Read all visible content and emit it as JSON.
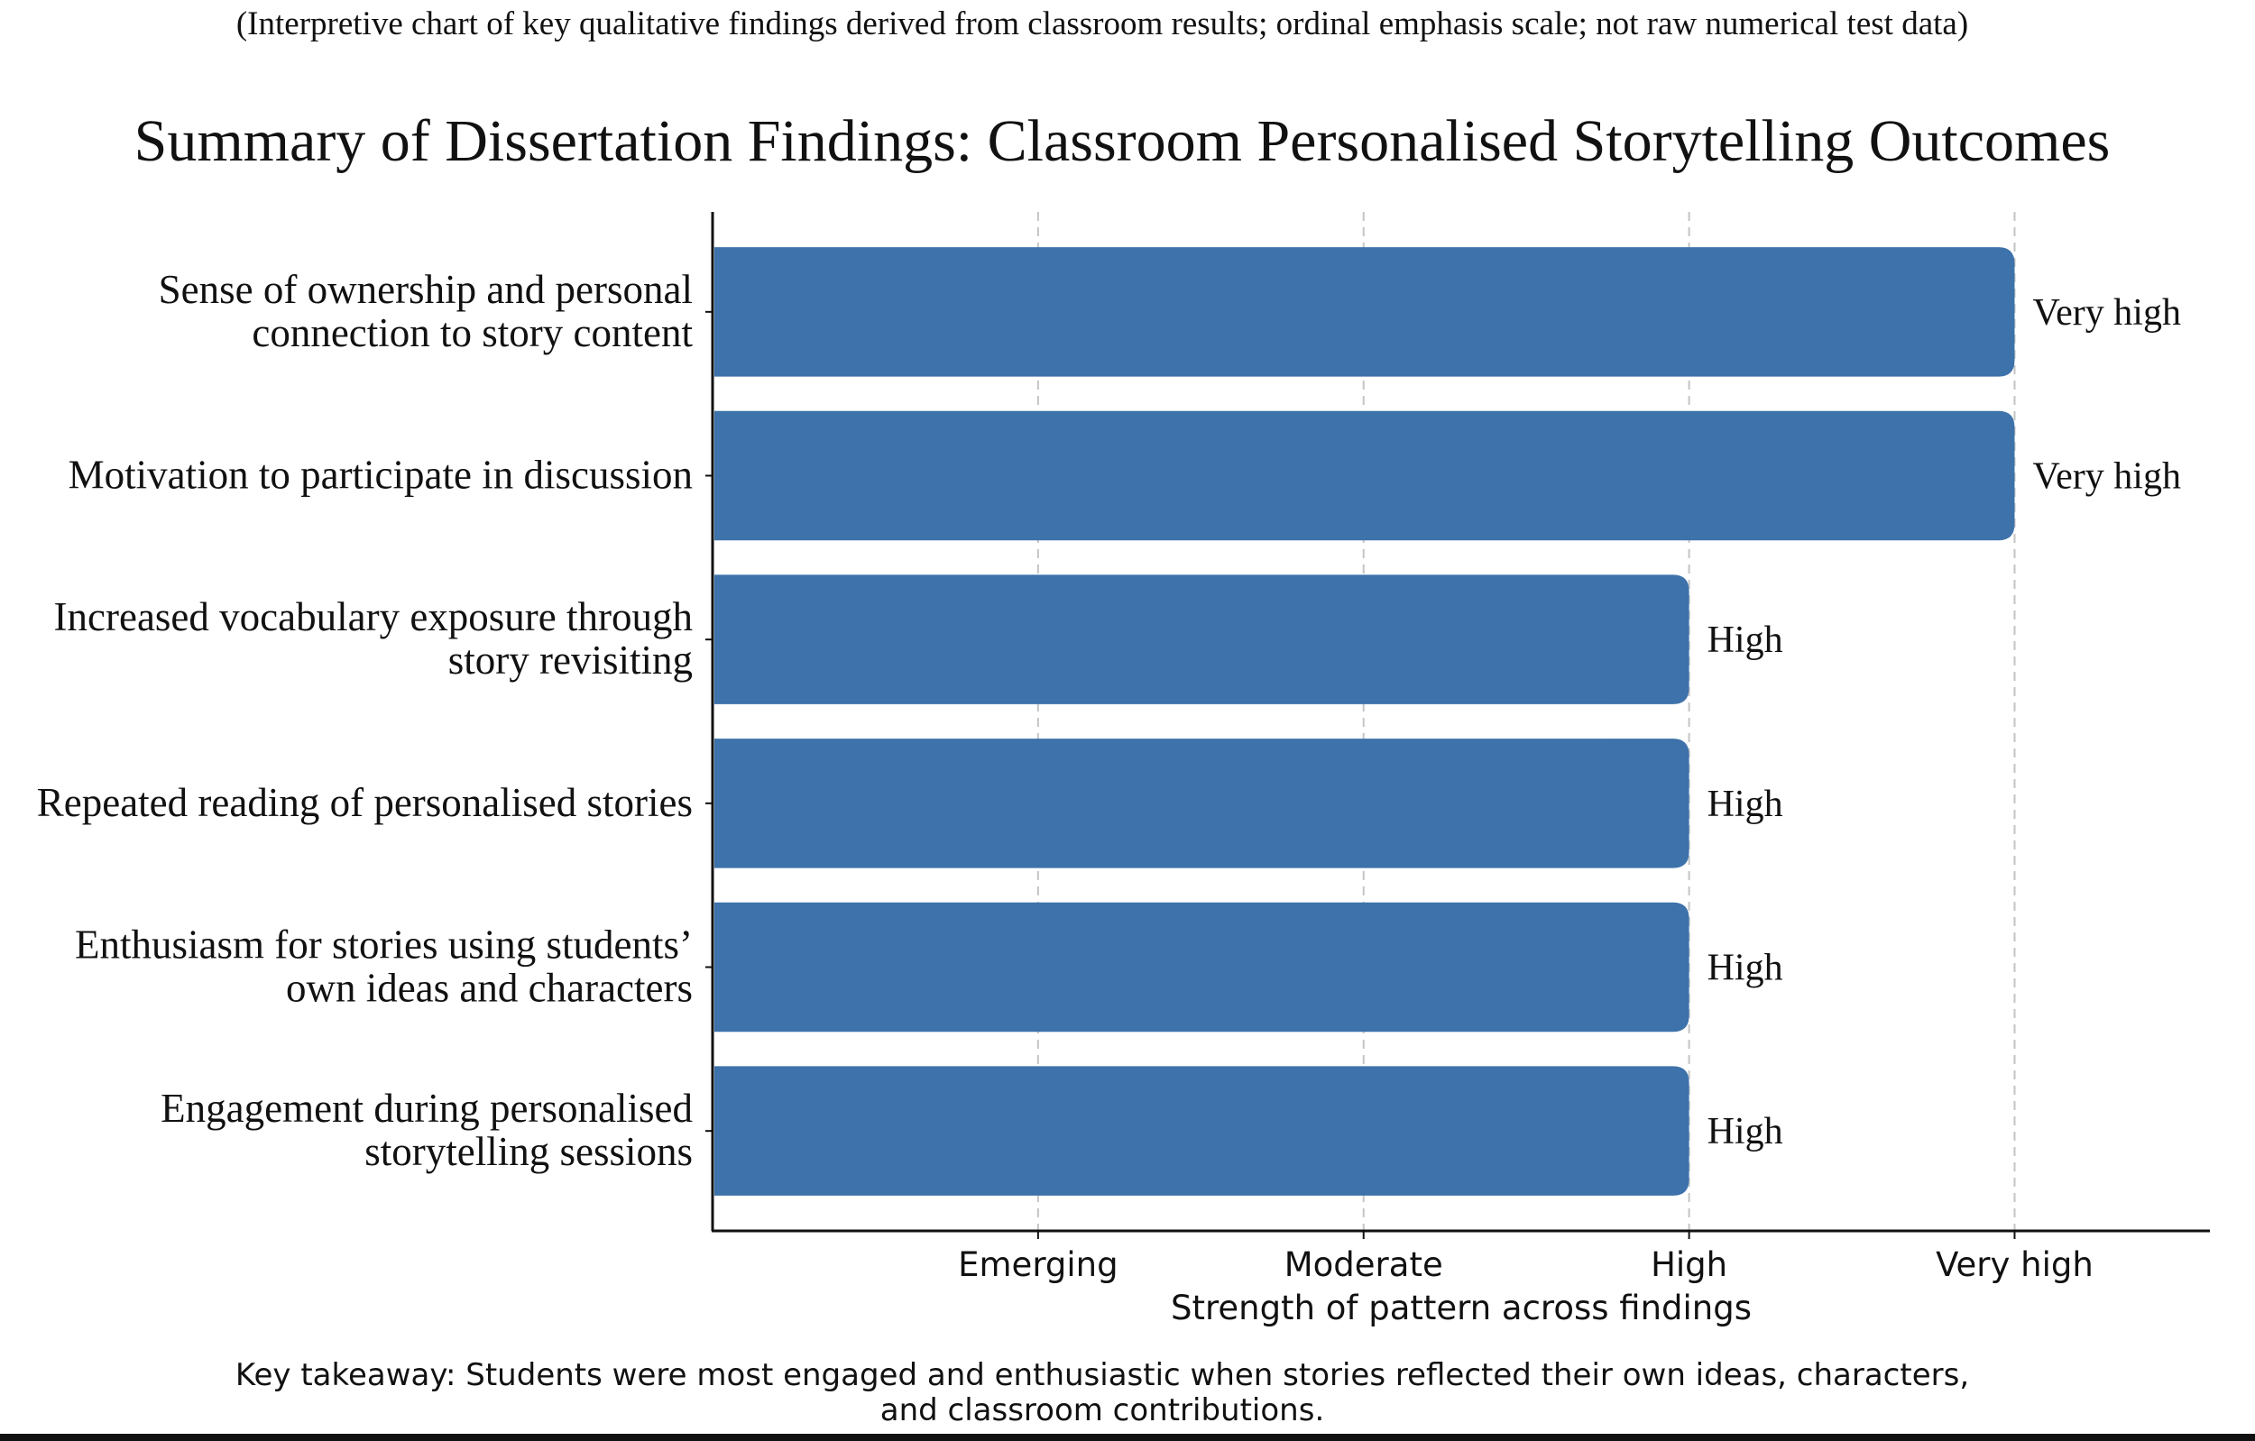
{
  "subtitle": "(Interpretive chart of key qualitative findings derived from classroom results; ordinal emphasis scale; not raw numerical test data)",
  "takeaway": {
    "line1": "Key takeaway: Students were most engaged and enthusiastic when stories reflected their own ideas, characters,",
    "line2": "and classroom contributions."
  },
  "colors": {
    "bar": "#3d72aa",
    "grid": "#c4c4c4",
    "axis": "#111111",
    "text": "#111111"
  },
  "chart_data": {
    "type": "bar",
    "orientation": "horizontal",
    "title": "Summary of Dissertation Findings: Classroom Personalised Storytelling Outcomes",
    "xlabel": "Strength of pattern across findings",
    "ylabel": "",
    "xlim": [
      0,
      4.6
    ],
    "x_ticks": [
      {
        "value": 1,
        "label": "Emerging"
      },
      {
        "value": 2,
        "label": "Moderate"
      },
      {
        "value": 3,
        "label": "High"
      },
      {
        "value": 4,
        "label": "Very high"
      }
    ],
    "grid": "vertical dashed at ticks",
    "categories": [
      [
        "Sense of ownership and personal",
        "connection to story content"
      ],
      [
        "Motivation to participate in discussion"
      ],
      [
        "Increased vocabulary exposure through",
        "story revisiting"
      ],
      [
        "Repeated reading of personalised stories"
      ],
      [
        "Enthusiasm for stories using students’",
        "own ideas and characters"
      ],
      [
        "Engagement during personalised",
        "storytelling sessions"
      ]
    ],
    "values": [
      4,
      4,
      3,
      3,
      3,
      3
    ],
    "data_labels": [
      "Very high",
      "Very high",
      "High",
      "High",
      "High",
      "High"
    ]
  }
}
